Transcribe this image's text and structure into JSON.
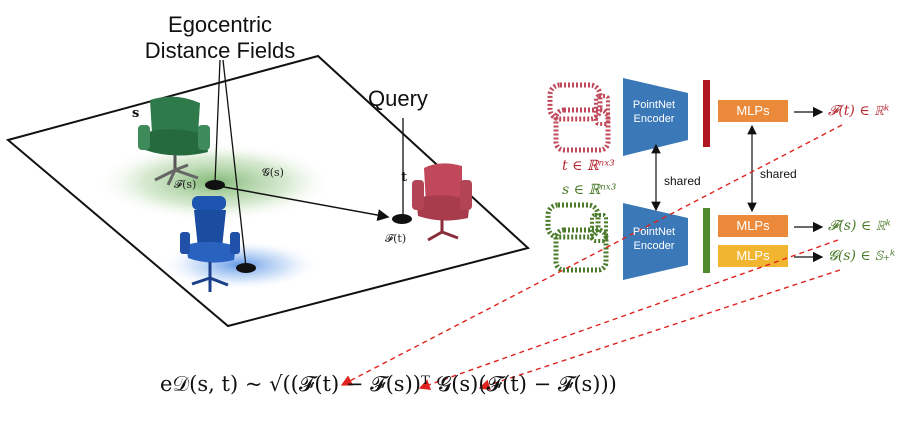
{
  "scene": {
    "title_line1": "Egocentric",
    "title_line2": "Distance Fields",
    "query_label": "Query",
    "s_label": "s",
    "t_label": "t",
    "Fs_label": "𝓕(s)",
    "Ft_label": "𝓕(t)",
    "Gs_label": "𝓖(s)"
  },
  "pipeline": {
    "encoder_top_line1": "PointNet",
    "encoder_top_line2": "Encoder",
    "encoder_bot_line1": "PointNet",
    "encoder_bot_line2": "Encoder",
    "mlps_top": "MLPs",
    "mlps_mid": "MLPs",
    "mlps_bot": "MLPs",
    "shared_left": "shared",
    "shared_right": "shared",
    "t_domain": "t ∈ ℝⁿˣ³",
    "s_domain": "s ∈ ℝⁿˣ³",
    "out_top": "𝓕(t) ∈ ℝᵏ",
    "out_mid": "𝓕(s) ∈ ℝᵏ",
    "out_bot": "𝓖(s) ∈ 𝕊₊ᵏ"
  },
  "formula": "e𝒟(s, t) ~ √((𝓕(t) − 𝓕(s))ᵀ 𝓖(s)(𝓕(t) − 𝓕(s)))",
  "colors": {
    "encoder_blue": "#3a78b8",
    "mlp_orange": "#ea8a3a",
    "mlp_yellow": "#f2b52f",
    "red_bar": "#b0161f",
    "green_bar": "#4f8a2c",
    "t_color": "#b52a33",
    "s_color": "#4a7a2a",
    "dashed_red": "#e0231f",
    "green_chair": "#2f7a4a",
    "blue_chair": "#1e55b0",
    "red_chair": "#c0485a"
  }
}
